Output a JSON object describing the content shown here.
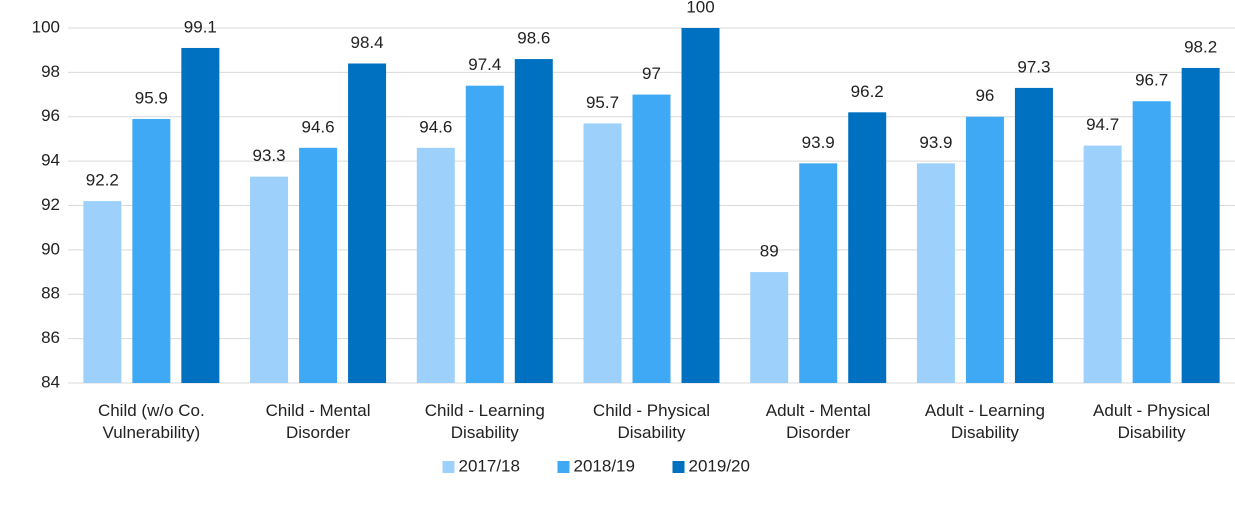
{
  "chart_data": {
    "type": "bar",
    "categories": [
      "Child (w/o Co. Vulnerability)",
      "Child - Mental Disorder",
      "Child - Learning Disability",
      "Child - Physical Disability",
      "Adult - Mental Disorder",
      "Adult - Learning Disability",
      "Adult - Physical Disability"
    ],
    "series": [
      {
        "name": "2017/18",
        "color": "#9dd1fc",
        "values": [
          92.2,
          93.3,
          94.6,
          95.7,
          89,
          93.9,
          94.7
        ]
      },
      {
        "name": "2018/19",
        "color": "#3fa9f5",
        "values": [
          95.9,
          94.6,
          97.4,
          97,
          93.9,
          96,
          96.7
        ]
      },
      {
        "name": "2019/20",
        "color": "#0070c0",
        "values": [
          99.1,
          98.4,
          98.6,
          100,
          96.2,
          97.3,
          98.2
        ]
      }
    ],
    "ylim": [
      84,
      100
    ],
    "yticks": [
      84,
      86,
      88,
      90,
      92,
      94,
      96,
      98,
      100
    ],
    "grid": true,
    "legend": "bottom"
  }
}
